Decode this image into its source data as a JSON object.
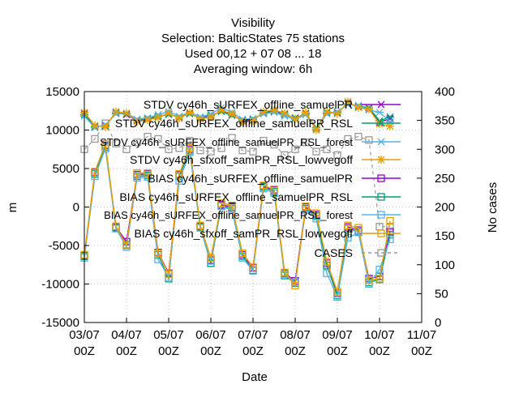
{
  "chart_data": {
    "type": "line",
    "title_lines": [
      "Visibility",
      "Selection: BalticStates      75 stations",
      "Used  00,12  + 07 08 ... 18",
      "Averaging window:  6h"
    ],
    "xlabel": "Date",
    "ylabel": "m",
    "y2label": "No cases",
    "x_ticks": [
      "03/07 00Z",
      "04/07 00Z",
      "05/07 00Z",
      "06/07 00Z",
      "07/07 00Z",
      "08/07 00Z",
      "09/07 00Z",
      "10/07 00Z",
      "11/07 00Z"
    ],
    "x_range": [
      0,
      8
    ],
    "ylim": [
      -15000,
      15000
    ],
    "y_ticks": [
      -15000,
      -10000,
      -5000,
      0,
      5000,
      10000,
      15000
    ],
    "y_tick_labels": [
      "-15000",
      "-10000",
      "-5000",
      "0",
      "5000",
      "10000",
      "15000"
    ],
    "y2lim": [
      0,
      400
    ],
    "y2_ticks": [
      0,
      50,
      100,
      150,
      200,
      250,
      300,
      350,
      400
    ],
    "y2_tick_labels": [
      "0",
      "50",
      "100",
      "150",
      "200",
      "250",
      "300",
      "350",
      "400"
    ],
    "legend_position": "top-right",
    "x": [
      0,
      0.25,
      0.5,
      0.75,
      1,
      1.25,
      1.5,
      1.75,
      2,
      2.25,
      2.5,
      2.75,
      3,
      3.25,
      3.5,
      3.75,
      4,
      4.25,
      4.5,
      4.75,
      5,
      5.25,
      5.5,
      5.75,
      6,
      6.25,
      6.5,
      6.75,
      7,
      7.25
    ],
    "series": [
      {
        "name": "STDV cy46h_sURFEX_offline_samuelPR",
        "group": "stdv",
        "color": "#9400d3",
        "marker": "x",
        "values": [
          12200,
          10500,
          10500,
          12300,
          12000,
          11200,
          11400,
          11700,
          12100,
          11600,
          12200,
          11500,
          11800,
          12500,
          12000,
          11200,
          11300,
          12300,
          12500,
          12100,
          11500,
          12200,
          10200,
          12300,
          12200,
          13500,
          13000,
          12800,
          11000,
          11500
        ]
      },
      {
        "name": "STDV cy46h_sURFEX_offline_samuelPR_RSL",
        "group": "stdv",
        "color": "#009e73",
        "marker": "star",
        "values": [
          12000,
          10400,
          10600,
          12200,
          12100,
          11300,
          11500,
          11800,
          12000,
          11700,
          12100,
          11600,
          11900,
          12400,
          11900,
          11300,
          11400,
          12200,
          12400,
          12000,
          11600,
          12100,
          10300,
          12200,
          12300,
          13400,
          13100,
          12900,
          11200,
          11700
        ]
      },
      {
        "name": "STDV cy46h_sURFEX_offline_samuelPR_RSL_forest",
        "group": "stdv",
        "color": "#56b4e9",
        "marker": "star",
        "values": [
          11800,
          10300,
          10700,
          12100,
          12200,
          11400,
          11600,
          12000,
          12400,
          11800,
          12300,
          11700,
          12100,
          12900,
          12300,
          11400,
          11500,
          12100,
          12300,
          11800,
          11400,
          12000,
          10100,
          12100,
          12400,
          13300,
          13200,
          12600,
          12300,
          11100
        ]
      },
      {
        "name": "STDV cy46h_sfxoff_samPR_RSL_lowvegoff",
        "group": "stdv",
        "color": "#e69f00",
        "marker": "asterisk",
        "values": [
          12300,
          10600,
          10400,
          12400,
          12200,
          11100,
          11300,
          11600,
          12200,
          11500,
          12300,
          11400,
          11700,
          12600,
          12100,
          11100,
          11200,
          12400,
          12600,
          12200,
          11400,
          12300,
          10000,
          12400,
          12100,
          13700,
          12900,
          12700,
          10800,
          10500
        ]
      },
      {
        "name": "BIAS cy46h_sURFEX_offline_samuelPR",
        "group": "bias",
        "color": "#9400d3",
        "marker": "square",
        "values": [
          -6300,
          4500,
          8000,
          -2600,
          -4500,
          4200,
          4300,
          -5900,
          -8600,
          4200,
          7500,
          -2500,
          -6900,
          300,
          0,
          -6200,
          -7900,
          2700,
          2200,
          -8600,
          -9600,
          0,
          -1000,
          -7300,
          -11200,
          -2600,
          -3000,
          -9300,
          -9000,
          -3200
        ]
      },
      {
        "name": "BIAS cy46h_sURFEX_offline_samuelPR_RSL",
        "group": "bias",
        "color": "#009e73",
        "marker": "square",
        "values": [
          -6400,
          4300,
          7800,
          -2700,
          -4900,
          4000,
          4100,
          -6200,
          -9300,
          4000,
          7300,
          -2600,
          -7300,
          200,
          -200,
          -6400,
          -8200,
          2600,
          2000,
          -8900,
          -9900,
          -200,
          -1200,
          -7600,
          -11500,
          -2800,
          -3200,
          -9800,
          -9400,
          -3600
        ]
      },
      {
        "name": "BIAS cy46h_sURFEX_offline_samuelPR_RSL_forest",
        "group": "bias",
        "color": "#56b4e9",
        "marker": "square",
        "values": [
          -6600,
          4000,
          7600,
          -2800,
          -5200,
          3800,
          3900,
          -6800,
          -9100,
          3400,
          7100,
          -2700,
          -7000,
          100,
          -400,
          -6600,
          -8300,
          2400,
          1800,
          -8700,
          -9800,
          -400,
          -1500,
          -8600,
          -11700,
          -4000,
          -3300,
          -10000,
          -8100,
          -4200
        ]
      },
      {
        "name": "BIAS cy46h_sfxoff_samPR_RSL_lowvegoff",
        "group": "bias",
        "color": "#e69f00",
        "marker": "square",
        "values": [
          -6200,
          4600,
          8200,
          -2500,
          -5000,
          4400,
          4400,
          -6000,
          -8700,
          4300,
          7700,
          -2400,
          -6600,
          500,
          200,
          -6000,
          -7800,
          2800,
          2300,
          -8500,
          -10200,
          100,
          -800,
          -7100,
          -11000,
          -2400,
          -2700,
          -9500,
          -9300,
          -1800
        ]
      },
      {
        "name": "CASES",
        "group": "cases",
        "axis": "y2",
        "color": "#999999",
        "marker": "square",
        "values": [
          300,
          318,
          345,
          310,
          300,
          312,
          322,
          318,
          300,
          302,
          315,
          298,
          296,
          302,
          320,
          298,
          296,
          315,
          308,
          290,
          300,
          312,
          296,
          300,
          290,
          318,
          322,
          316,
          166,
          166
        ]
      }
    ]
  }
}
